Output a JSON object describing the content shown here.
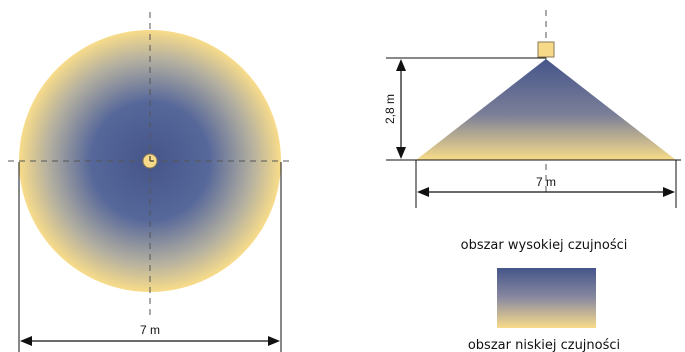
{
  "top_view": {
    "width_label": "7 m"
  },
  "side_view": {
    "height_label": "2,8 m",
    "width_label": "7 m"
  },
  "legend": {
    "high_label": "obszar wysokiej czujności",
    "low_label": "obszar niskiej czujności"
  },
  "colors": {
    "high_sensitivity": "#4a5a8c",
    "low_sensitivity": "#f7d98a",
    "sensor": "#f7d98a",
    "line": "#111111",
    "axis_dash": "#555555"
  }
}
